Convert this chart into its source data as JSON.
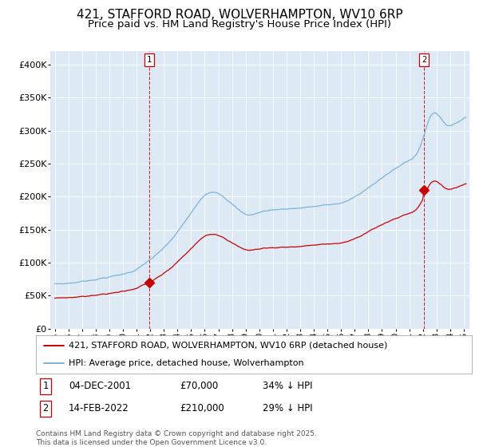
{
  "title_line1": "421, STAFFORD ROAD, WOLVERHAMPTON, WV10 6RP",
  "title_line2": "Price paid vs. HM Land Registry's House Price Index (HPI)",
  "legend_entries": [
    "421, STAFFORD ROAD, WOLVERHAMPTON, WV10 6RP (detached house)",
    "HPI: Average price, detached house, Wolverhampton"
  ],
  "marker1_date_label": "04-DEC-2001",
  "marker1_price": 70000,
  "marker1_hpi_pct": "34% ↓ HPI",
  "marker2_date_label": "14-FEB-2022",
  "marker2_price": 210000,
  "marker2_hpi_pct": "29% ↓ HPI",
  "ylim": [
    0,
    420000
  ],
  "yticks": [
    0,
    50000,
    100000,
    150000,
    200000,
    250000,
    300000,
    350000,
    400000
  ],
  "ytick_labels": [
    "£0",
    "£50K",
    "£100K",
    "£150K",
    "£200K",
    "£250K",
    "£300K",
    "£350K",
    "£400K"
  ],
  "hpi_color": "#7ab4d8",
  "price_color": "#cc0000",
  "vline_color": "#cc0000",
  "plot_bg_color": "#ddeaf6",
  "marker1_month_idx": 83,
  "marker2_month_idx": 325,
  "total_months": 363,
  "footer_text": "Contains HM Land Registry data © Crown copyright and database right 2025.\nThis data is licensed under the Open Government Licence v3.0.",
  "title_fontsize": 11,
  "subtitle_fontsize": 9.5,
  "tick_fontsize": 8,
  "legend_fontsize": 8,
  "annotation_fontsize": 8.5
}
